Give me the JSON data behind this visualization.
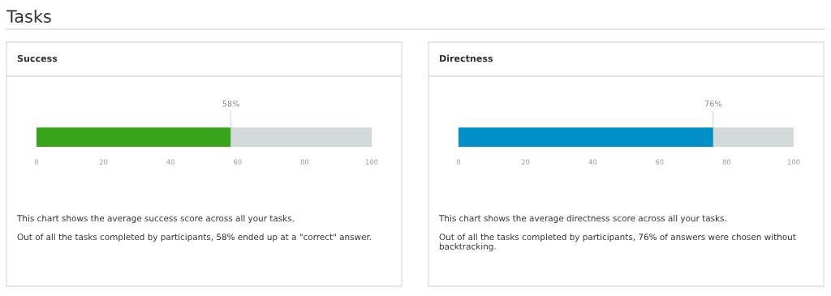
{
  "chart_data": [
    {
      "type": "bar",
      "title": "Tasks",
      "subtitle": "Success",
      "orientation": "horizontal",
      "stacked": true,
      "categories": [
        null
      ],
      "xlim": [
        0,
        100
      ],
      "xticks": [
        0,
        20,
        40,
        60,
        80,
        100
      ],
      "grid": false,
      "legend": false,
      "series": [
        {
          "color": "#37a41b",
          "values": [
            58
          ],
          "value_labels": [
            "58%"
          ]
        },
        {
          "color": "#d1d9db",
          "values": [
            42
          ]
        }
      ],
      "annotations": [
        "This chart shows the average success score across all your tasks.",
        "Out of all the tasks completed by participants, 58% ended up at a \"correct\" answer."
      ]
    },
    {
      "type": "bar",
      "subtitle": "Directness",
      "orientation": "horizontal",
      "stacked": true,
      "categories": [
        null
      ],
      "xlim": [
        0,
        100
      ],
      "xticks": [
        0,
        20,
        40,
        60,
        80,
        100
      ],
      "grid": false,
      "legend": false,
      "series": [
        {
          "color": "#008fc6",
          "values": [
            76
          ],
          "value_labels": [
            "76%"
          ]
        },
        {
          "color": "#d1d9db",
          "values": [
            24
          ]
        }
      ],
      "annotations": [
        "This chart shows the average directness score across all your tasks.",
        "Out of all the tasks completed by participants, 76% of answers were chosen without backtracking."
      ]
    }
  ]
}
